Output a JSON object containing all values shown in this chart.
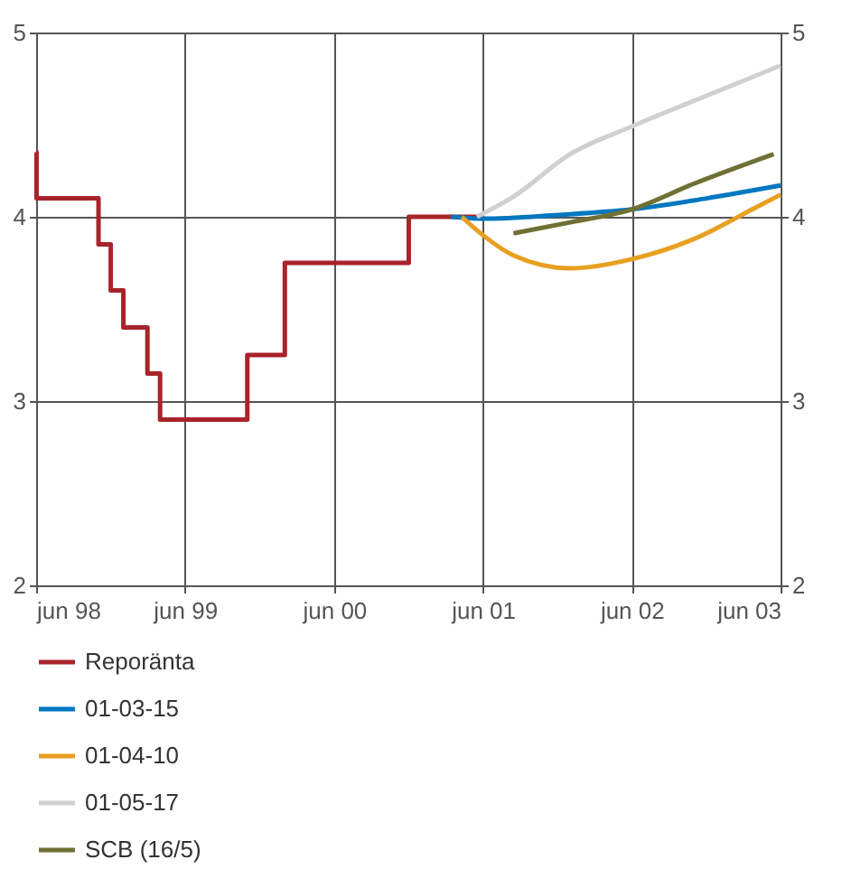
{
  "chart_data": {
    "type": "line",
    "xlim": [
      "1998-06",
      "2003-06"
    ],
    "xticks": [
      {
        "value": "1998-06",
        "label": "jun 98"
      },
      {
        "value": "1999-06",
        "label": "jun 99"
      },
      {
        "value": "2000-06",
        "label": "jun 00"
      },
      {
        "value": "2001-06",
        "label": "jun 01"
      },
      {
        "value": "2002-06",
        "label": "jun 02"
      },
      {
        "value": "2003-06",
        "label": "jun 03"
      }
    ],
    "ylim": [
      2,
      5
    ],
    "yticks": [
      2,
      3,
      4,
      5
    ],
    "y2lim": [
      2,
      5
    ],
    "y2ticks": [
      2,
      3,
      4,
      5
    ],
    "grid": true,
    "legend": "bottom",
    "line_style": "solid",
    "marker": "none",
    "series": [
      {
        "name": "Reporänta",
        "type": "step",
        "color": "#a8232b",
        "x": [
          "1998-06-01",
          "1998-06-02",
          "1998-11-01",
          "1998-12-01",
          "1999-01-01",
          "1999-03-01",
          "1999-04-01",
          "1999-11-01",
          "2000-02-01",
          "2000-12-01",
          "2001-06-01"
        ],
        "values": [
          4.35,
          4.1,
          3.85,
          3.6,
          3.4,
          3.15,
          2.9,
          3.25,
          3.75,
          4.0,
          4.0
        ]
      },
      {
        "name": "01-03-15",
        "color": "#0077c0",
        "x": [
          "2001-03-15",
          "2001-06",
          "2001-12",
          "2002-06",
          "2002-12",
          "2003-06"
        ],
        "values": [
          4.0,
          3.99,
          4.01,
          4.04,
          4.1,
          4.17
        ]
      },
      {
        "name": "01-04-10",
        "color": "#e8a020",
        "x": [
          "2001-04-10",
          "2001-06",
          "2001-08-15",
          "2002-01",
          "2002-06",
          "2002-11",
          "2003-04",
          "2003-06"
        ],
        "values": [
          4.0,
          3.9,
          3.79,
          3.72,
          3.77,
          3.88,
          4.05,
          4.12
        ]
      },
      {
        "name": "01-05-17",
        "color": "#d0d0d0",
        "x": [
          "2001-05-17",
          "2001-08-15",
          "2002-01",
          "2002-06",
          "2002-11",
          "2003-06"
        ],
        "values": [
          4.0,
          4.11,
          4.34,
          4.49,
          4.63,
          4.82
        ]
      },
      {
        "name": "SCB (16/5)",
        "color": "#707034",
        "x": [
          "2001-08-15",
          "2002-01",
          "2002-06",
          "2002-11",
          "2003-05-15"
        ],
        "values": [
          3.91,
          3.97,
          4.04,
          4.18,
          4.34
        ]
      }
    ]
  }
}
